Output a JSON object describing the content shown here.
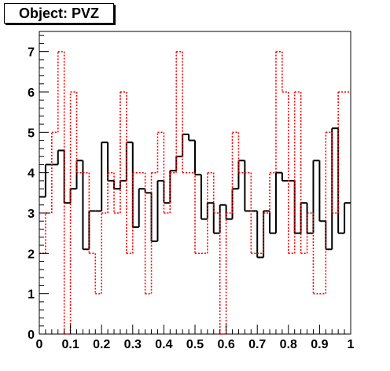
{
  "title": "Object: PVZ",
  "chart_data": {
    "type": "line",
    "step": true,
    "title": "Object: PVZ",
    "xlabel": "",
    "ylabel": "",
    "xlim": [
      0,
      1
    ],
    "ylim": [
      0,
      7.5
    ],
    "x_ticks": [
      "0",
      "0.1",
      "0.2",
      "0.3",
      "0.4",
      "0.5",
      "0.6",
      "0.7",
      "0.8",
      "0.9",
      "1"
    ],
    "y_ticks": [
      "0",
      "1",
      "2",
      "3",
      "4",
      "5",
      "6",
      "7"
    ],
    "bins": 50,
    "series": [
      {
        "style": "solid",
        "color": "#000000",
        "values": [
          3.4,
          4.2,
          4.2,
          4.55,
          3.25,
          3.6,
          4.3,
          2.1,
          3.05,
          3.05,
          4.75,
          3.8,
          3.6,
          3.8,
          4.75,
          2.65,
          3.6,
          3.5,
          2.3,
          3.8,
          3.25,
          4.05,
          4.4,
          4.95,
          4.8,
          3.95,
          2.85,
          3.25,
          2.5,
          3.2,
          2.85,
          3.6,
          4.3,
          3.05,
          3.05,
          1.9,
          3.05,
          2.5,
          4.0,
          3.8,
          3.8,
          2.5,
          3.25,
          2.5,
          4.3,
          2.8,
          2.1,
          5.1,
          2.5,
          3.25,
          2.3
        ]
      },
      {
        "style": "dotted",
        "color": "#ff0000",
        "values": [
          2.0,
          3.0,
          5.0,
          7.0,
          0.0,
          6.0,
          4.0,
          4.0,
          2.0,
          1.0,
          3.0,
          4.0,
          3.0,
          6.0,
          2.0,
          4.0,
          4.0,
          1.0,
          4.0,
          5.0,
          3.0,
          4.0,
          7.0,
          4.0,
          4.0,
          2.0,
          2.0,
          4.0,
          3.0,
          0.0,
          3.0,
          5.0,
          4.0,
          4.0,
          2.0,
          2.0,
          3.0,
          4.0,
          7.0,
          6.0,
          2.0,
          6.0,
          2.0,
          3.0,
          1.0,
          1.0,
          5.0,
          3.0,
          6.0,
          6.0,
          4.0
        ]
      }
    ]
  }
}
